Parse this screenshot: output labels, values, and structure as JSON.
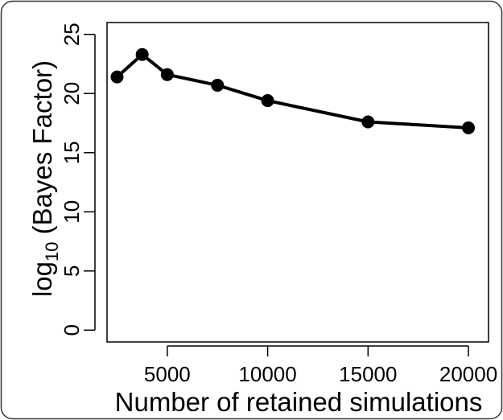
{
  "chart_data": {
    "type": "line",
    "title": "",
    "xlabel": "Number of retained simulations",
    "ylabel": {
      "base": "log",
      "subscript": "10",
      "rest": " (Bayes Factor)"
    },
    "x": [
      2500,
      3750,
      5000,
      7500,
      10000,
      15000,
      20000
    ],
    "series": [
      {
        "values": [
          21.4,
          23.3,
          21.6,
          20.7,
          19.4,
          17.6,
          17.1
        ]
      }
    ],
    "xlim": [
      2000,
      21000
    ],
    "ylim": [
      -1,
      26
    ],
    "x_ticks": [
      5000,
      10000,
      15000,
      20000
    ],
    "x_tick_labels": [
      "5000",
      "10000",
      "15000",
      "20000"
    ],
    "y_ticks": [
      0,
      5,
      10,
      15,
      20,
      25
    ],
    "y_tick_labels": [
      "0",
      "5",
      "10",
      "15",
      "20",
      "25"
    ],
    "grid": false,
    "legend": "none",
    "colors": {
      "line": "#000000",
      "marker": "#000000",
      "frame": "#000000",
      "outer_border": "#333333"
    }
  }
}
